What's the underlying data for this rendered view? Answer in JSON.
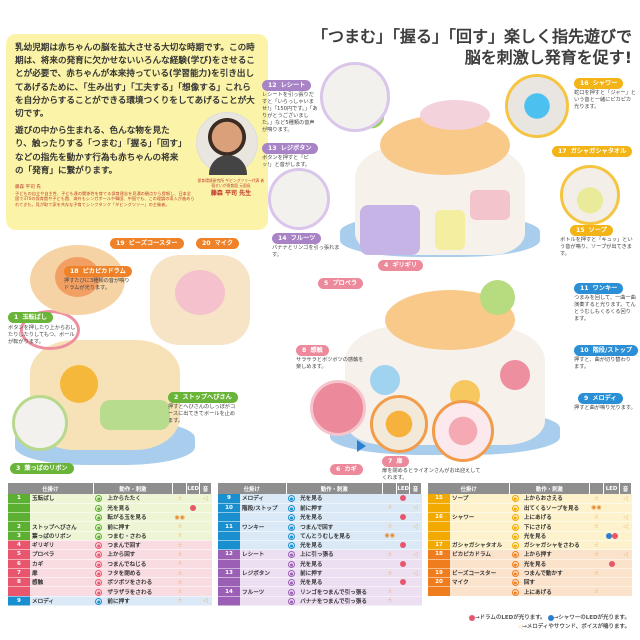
{
  "intro": {
    "paragraph1": "乳幼児期は赤ちゃんの脳を拡大させる大切な時期です。この時期は、将来の発育に欠かせないいろんな経験(学び)をさせることが必要で、赤ちゃんが本来持っている(学習能力)を引き出してあげるために、「生み出す」「工夫する」「想像する」これらを自分からすることができる環境つくりをしてあげることが大切です。",
    "paragraph2": "遊びの中から生まれる、色んな物を見たり、触ったりする「つまむ」「握る」「回す」などの指先を動かす行為も赤ちゃんの将来の「発育」に繋がります。",
    "bio_name": "藤森 平司 氏",
    "bio": "子どもの自立や自主性、子ども達の関係性を育てる保育理念を見通の観点から提唱し、日本全国で370の保育園や子ども園、海外もシンガポールや韓国、中国でも、この理論の導入が進められてきた。見が取て家を共存な子育てシンクタンク「ギビングツリー」の主催者。",
    "profile_title": "保育環境研究所 ギビングツリー代表 新宿せいが保育園 元園長",
    "profile_name": "藤森 平司 先生"
  },
  "headline": {
    "line1": "「つまむ」「握る」「回す」楽しく指先遊びで",
    "line2": "脳を刺激し発育を促す!"
  },
  "callouts": [
    {
      "num": "1",
      "name": "玉転ばし",
      "desc": "ボタンを押したり上からおしたりしたりしてもつ、ボールが転がります。"
    },
    {
      "num": "2",
      "name": "ストップへびさん",
      "desc": "押すとへびさんのしっぽがコースに出てきてボールを止めます。"
    },
    {
      "num": "3",
      "name": "葉っぱのリボン",
      "desc": ""
    },
    {
      "num": "4",
      "name": "ギリギリ",
      "desc": ""
    },
    {
      "num": "5",
      "name": "プロペラ",
      "desc": ""
    },
    {
      "num": "6",
      "name": "カギ",
      "desc": ""
    },
    {
      "num": "7",
      "name": "扉",
      "desc": "扉を閉めるとライオンさんがお出迎えしてくれます。"
    },
    {
      "num": "8",
      "name": "感触",
      "desc": "サラサラとボツボツの感触を楽しめます。"
    },
    {
      "num": "9",
      "name": "メロディ",
      "desc": "押すと曲が鳴り光ります。"
    },
    {
      "num": "10",
      "name": "階段/ストップ",
      "desc": "押すと、曲が切り替わります。"
    },
    {
      "num": "11",
      "name": "ワンキー",
      "desc": "つまみを回して、一曲一曲演奏すると光ります。てんとうむしもくるくる回ります。"
    },
    {
      "num": "12",
      "name": "レシート",
      "desc": "レシートを引っ張りだすと「いらっしゃいませ!」「150円です。」「ありがとうございました。」など5種類の音声が鳴ります。"
    },
    {
      "num": "13",
      "name": "レジボタン",
      "desc": "ボタンを押すと「ピッ!」と音がします。"
    },
    {
      "num": "14",
      "name": "フルーツ",
      "desc": "バナナとリンゴを引っ張れます。"
    },
    {
      "num": "15",
      "name": "ソープ",
      "desc": "ボトルを押すと「キュッ」という音が鳴り、ソープが出てきます。"
    },
    {
      "num": "16",
      "name": "シャワー",
      "desc": "蛇口を押すと「ジャー」という音と一緒にピカピカ光ります。"
    },
    {
      "num": "17",
      "name": "ガシャガシャタオル",
      "desc": ""
    },
    {
      "num": "18",
      "name": "ピカピカドラム",
      "desc": "押すたびに3種類の音が鳴りドラムが光ります。"
    },
    {
      "num": "19",
      "name": "ビーズコースター",
      "desc": ""
    },
    {
      "num": "20",
      "name": "マイク",
      "desc": ""
    }
  ],
  "table_headers": {
    "part": "仕掛け",
    "action": "動作・刺激",
    "led": "LED",
    "sound": "音"
  },
  "tables": [
    {
      "rows": [
        {
          "num": "1",
          "name": "玉転ばし",
          "action": "上からたたく",
          "touch": true,
          "sound": true,
          "color": "#5bb031",
          "bg": "#eef5d5"
        },
        {
          "num": "",
          "name": "",
          "action": "光を見る",
          "led": "#e8566e",
          "color": "#5bb031",
          "bg": "#eef5d5"
        },
        {
          "num": "",
          "name": "",
          "action": "転がる玉を見る",
          "eye": true,
          "color": "#5bb031",
          "bg": "#eef5d5"
        },
        {
          "num": "2",
          "name": "ストップへびさん",
          "action": "前に押す",
          "touch": true,
          "color": "#5bb031",
          "bg": "#eef5d5"
        },
        {
          "num": "3",
          "name": "葉っぱのリボン",
          "action": "つまむ・さわる",
          "touch": true,
          "color": "#5bb031",
          "bg": "#eef5d5"
        },
        {
          "num": "4",
          "name": "ギリギリ",
          "action": "つまんで回す",
          "touch": true,
          "color": "#e8566e",
          "bg": "#f9dce2"
        },
        {
          "num": "5",
          "name": "プロペラ",
          "action": "上から回す",
          "touch": true,
          "color": "#e8566e",
          "bg": "#f9dce2"
        },
        {
          "num": "6",
          "name": "カギ",
          "action": "つまんでねじる",
          "touch": true,
          "color": "#e8566e",
          "bg": "#f9dce2"
        },
        {
          "num": "7",
          "name": "扉",
          "action": "フタを閉める",
          "touch": true,
          "color": "#e8566e",
          "bg": "#f9dce2"
        },
        {
          "num": "8",
          "name": "感触",
          "action": "ボツボツをさわる",
          "touch": true,
          "color": "#e8566e",
          "bg": "#f9dce2"
        },
        {
          "num": "",
          "name": "",
          "action": "ザラザラをさわる",
          "touch": true,
          "color": "#e8566e",
          "bg": "#f9dce2"
        },
        {
          "num": "9",
          "name": "メロディ",
          "action": "前に押す",
          "touch": true,
          "sound": true,
          "color": "#1a8fd0",
          "bg": "#dbe9f6"
        }
      ]
    },
    {
      "rows": [
        {
          "num": "9",
          "name": "メロディ",
          "action": "光を見る",
          "led": "#e8566e",
          "color": "#1a8fd0",
          "bg": "#dbe9f6"
        },
        {
          "num": "10",
          "name": "階段/ストップ",
          "action": "前に押す",
          "touch": true,
          "sound": true,
          "color": "#1a8fd0",
          "bg": "#dbe9f6"
        },
        {
          "num": "",
          "name": "",
          "action": "光を見る",
          "led": "#e8566e",
          "color": "#1a8fd0",
          "bg": "#dbe9f6"
        },
        {
          "num": "11",
          "name": "ワンキー",
          "action": "つまんで回す",
          "touch": true,
          "sound": true,
          "color": "#1a8fd0",
          "bg": "#dbe9f6"
        },
        {
          "num": "",
          "name": "",
          "action": "てんとうむしを見る",
          "eye": true,
          "color": "#1a8fd0",
          "bg": "#dbe9f6"
        },
        {
          "num": "",
          "name": "",
          "action": "光を見る",
          "led": "#e8566e",
          "color": "#1a8fd0",
          "bg": "#dbe9f6"
        },
        {
          "num": "12",
          "name": "レシート",
          "action": "上に引っ張る",
          "touch": true,
          "sound": true,
          "color": "#9b5fb5",
          "bg": "#ecdff1"
        },
        {
          "num": "",
          "name": "",
          "action": "光を見る",
          "led": "#e8566e",
          "color": "#9b5fb5",
          "bg": "#ecdff1"
        },
        {
          "num": "13",
          "name": "レジボタン",
          "action": "前に押す",
          "touch": true,
          "sound": true,
          "color": "#9b5fb5",
          "bg": "#ecdff1"
        },
        {
          "num": "",
          "name": "",
          "action": "光を見る",
          "led": "#e8566e",
          "color": "#9b5fb5",
          "bg": "#ecdff1"
        },
        {
          "num": "14",
          "name": "フルーツ",
          "action": "リンゴをつまんで引っ張る",
          "touch": true,
          "color": "#9b5fb5",
          "bg": "#ecdff1"
        },
        {
          "num": "",
          "name": "",
          "action": "バナナをつまんで引っ張る",
          "touch": true,
          "color": "#9b5fb5",
          "bg": "#ecdff1"
        }
      ]
    },
    {
      "rows": [
        {
          "num": "15",
          "name": "ソープ",
          "action": "上からおさえる",
          "touch": true,
          "sound": true,
          "color": "#f2a900",
          "bg": "#fdf2cc"
        },
        {
          "num": "",
          "name": "",
          "action": "出てくるソープを見る",
          "eye": true,
          "color": "#f2a900",
          "bg": "#fdf2cc"
        },
        {
          "num": "16",
          "name": "シャワー",
          "action": "上にあげる",
          "touch": true,
          "sound": true,
          "color": "#f2a900",
          "bg": "#fdf2cc"
        },
        {
          "num": "",
          "name": "",
          "action": "下にさげる",
          "touch": true,
          "sound": true,
          "color": "#f2a900",
          "bg": "#fdf2cc"
        },
        {
          "num": "",
          "name": "",
          "action": "光を見る",
          "led": "#2a7fcf",
          "led2": "#e8566e",
          "color": "#f2a900",
          "bg": "#fdf2cc"
        },
        {
          "num": "17",
          "name": "ガシャガシャタオル",
          "action": "ガシャガシャをさわる",
          "touch": true,
          "color": "#f2a900",
          "bg": "#fdf2cc"
        },
        {
          "num": "18",
          "name": "ピカピカドラム",
          "action": "上から押す",
          "touch": true,
          "sound": true,
          "color": "#ef7d1e",
          "bg": "#fbe2cb"
        },
        {
          "num": "",
          "name": "",
          "action": "光を見る",
          "led": "#e8566e",
          "color": "#ef7d1e",
          "bg": "#fbe2cb"
        },
        {
          "num": "19",
          "name": "ビーズコースター",
          "action": "つまんで動かす",
          "touch": true,
          "color": "#ef7d1e",
          "bg": "#fbe2cb"
        },
        {
          "num": "20",
          "name": "マイク",
          "action": "回す",
          "color": "#ef7d1e",
          "bg": "#fbe2cb"
        },
        {
          "num": "",
          "name": "",
          "action": "上にあげる",
          "touch": true,
          "color": "#ef7d1e",
          "bg": "#fbe2cb"
        }
      ]
    }
  ],
  "legend": {
    "drum_led": "→ドラムのLEDが光ります。",
    "shower_led": "→シャワーのLEDが光ります。",
    "sound": "→メロディやサウンド、ボイスが鳴ります。"
  },
  "icons": {
    "touch": "hand-icon",
    "eye": "eyes-icon",
    "sound": "speaker-icon"
  },
  "colors": {
    "drum_led": "#e8566e",
    "shower_led": "#2a7fcf",
    "sound": "#e8b86a"
  }
}
